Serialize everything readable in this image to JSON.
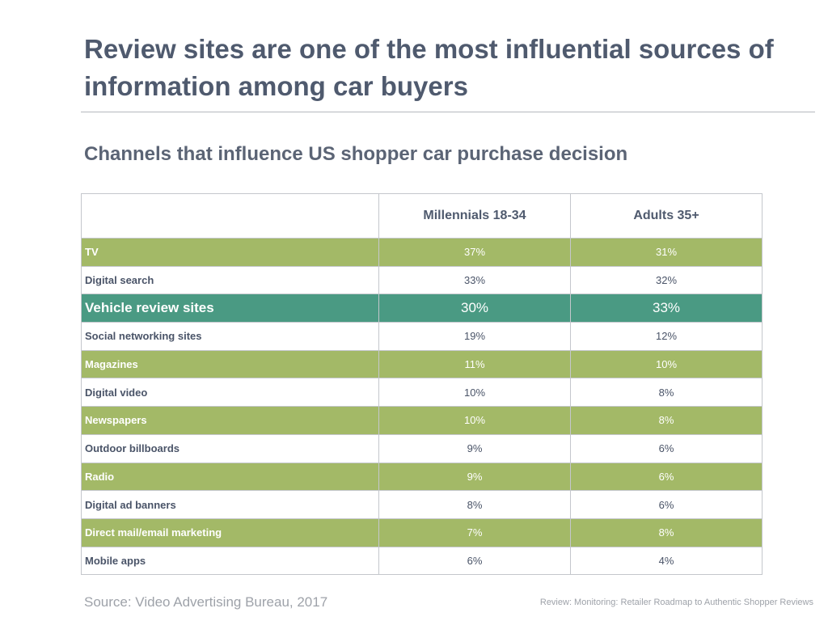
{
  "title": "Review sites are one of the most influential sources of information among car buyers",
  "source": "Source: Video Advertising Bureau, 2017",
  "footer_reference": "Review: Monitoring: Retailer Roadmap to Authentic Shopper Reviews",
  "colors": {
    "row_green": "#a3b967",
    "row_highlight": "#4a9a83",
    "text": "#4f5a6e"
  },
  "chart_data": {
    "type": "table",
    "title": "Channels that influence US shopper car purchase decision",
    "columns": [
      "",
      "Millennials 18-34",
      "Adults 35+"
    ],
    "rows": [
      {
        "channel": "TV",
        "millennials": "37%",
        "adults": "31%",
        "style": "green"
      },
      {
        "channel": "Digital search",
        "millennials": "33%",
        "adults": "32%",
        "style": "white"
      },
      {
        "channel": "Vehicle review sites",
        "millennials": "30%",
        "adults": "33%",
        "style": "highlight"
      },
      {
        "channel": "Social networking sites",
        "millennials": "19%",
        "adults": "12%",
        "style": "white"
      },
      {
        "channel": "Magazines",
        "millennials": "11%",
        "adults": "10%",
        "style": "green"
      },
      {
        "channel": "Digital video",
        "millennials": "10%",
        "adults": "8%",
        "style": "white"
      },
      {
        "channel": "Newspapers",
        "millennials": "10%",
        "adults": "8%",
        "style": "green"
      },
      {
        "channel": "Outdoor billboards",
        "millennials": "9%",
        "adults": "6%",
        "style": "white"
      },
      {
        "channel": "Radio",
        "millennials": "9%",
        "adults": "6%",
        "style": "green"
      },
      {
        "channel": "Digital ad banners",
        "millennials": "8%",
        "adults": "6%",
        "style": "white"
      },
      {
        "channel": "Direct mail/email marketing",
        "millennials": "7%",
        "adults": "8%",
        "style": "green"
      },
      {
        "channel": "Mobile apps",
        "millennials": "6%",
        "adults": "4%",
        "style": "white"
      }
    ]
  }
}
